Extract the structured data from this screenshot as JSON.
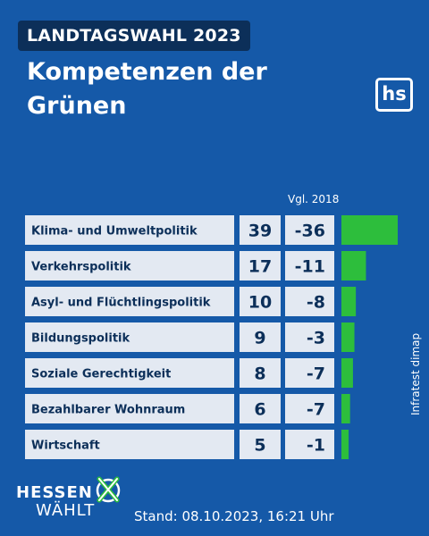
{
  "header": {
    "tag": "LANDTAGSWAHL 2023",
    "title": "Kompetenzen der Grünen",
    "logo": "hs"
  },
  "chart_data": {
    "type": "bar",
    "title": "Kompetenzen der Grünen",
    "compare_header": "Vgl. 2018",
    "categories": [
      "Klima- und Umweltpolitik",
      "Verkehrspolitik",
      "Asyl- und Flüchtlingspolitik",
      "Bildungspolitik",
      "Soziale Gerechtigkeit",
      "Bezahlbarer Wohnraum",
      "Wirtschaft"
    ],
    "values": [
      39,
      17,
      10,
      9,
      8,
      6,
      5
    ],
    "change_vs_2018": [
      "-36",
      "-11",
      "-8",
      "-3",
      "-7",
      "-7",
      "-1"
    ],
    "bar_color": "#2dbe3c",
    "xlim": [
      0,
      39
    ],
    "grid": false,
    "legend": "none"
  },
  "source": "Infratest dimap",
  "footer": {
    "brand_top": "HESSEN",
    "brand_bottom": "WÄHLT",
    "stand": "Stand: 08.10.2023, 16:21 Uhr"
  },
  "colors": {
    "background": "#1559a8",
    "dark": "#0c2f59",
    "cell": "#e3e9f2",
    "accent": "#2dbe3c"
  }
}
